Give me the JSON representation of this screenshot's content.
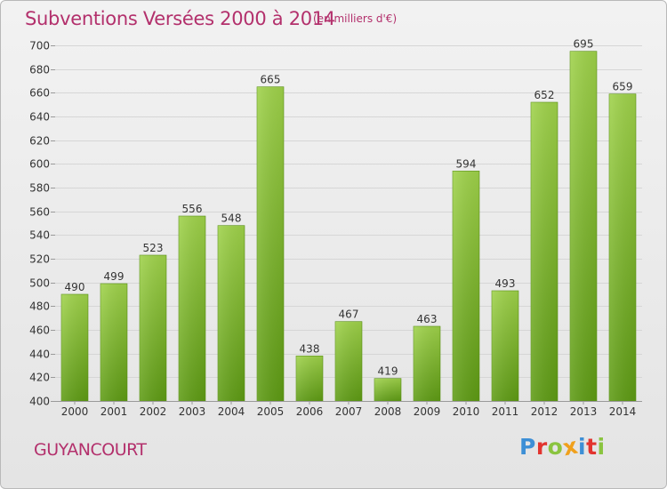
{
  "header": {
    "title": "Subventions Versées 2000 à 2014",
    "unit": "(en milliers d'€)"
  },
  "footer": {
    "city": "GUYANCOURT",
    "logo_letters": [
      "P",
      "r",
      "o",
      "x",
      "i",
      "t",
      "i"
    ],
    "logo_colors": [
      "#3d8fd6",
      "#e2342f",
      "#8ac43f",
      "#f0a01c",
      "#3d8fd6",
      "#e2342f",
      "#8ac43f"
    ]
  },
  "chart_data": {
    "type": "bar",
    "title": "Subventions Versées 2000 à 2014",
    "xlabel": "",
    "ylabel": "",
    "categories": [
      "2000",
      "2001",
      "2002",
      "2003",
      "2004",
      "2005",
      "2006",
      "2007",
      "2008",
      "2009",
      "2010",
      "2011",
      "2012",
      "2013",
      "2014"
    ],
    "values": [
      490,
      499,
      523,
      556,
      548,
      665,
      438,
      467,
      419,
      463,
      594,
      493,
      652,
      695,
      659
    ],
    "ylim": [
      400,
      700
    ],
    "yticks": [
      400,
      420,
      440,
      460,
      480,
      500,
      520,
      540,
      560,
      580,
      600,
      620,
      640,
      660,
      680,
      700
    ],
    "grid": true,
    "bar_color_top": "#9fd24a",
    "bar_color_bottom": "#5e9b14",
    "label_color": "#333333"
  }
}
